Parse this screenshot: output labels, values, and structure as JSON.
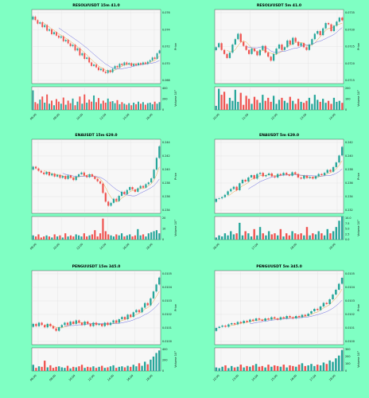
{
  "colors": {
    "background": "#7fffc3",
    "plot_bg": "#f7f7f7",
    "up": "#26a69a",
    "down": "#ef5350",
    "ma_fast": "#e8a33a",
    "ma_slow": "#6b6be0"
  },
  "chart_data": [
    {
      "type": "candlestick",
      "title": "RESOLVUSDT 15m 41.0",
      "ylabel": "Price",
      "vol_label": "Volume  10³",
      "price_ticks": [
        "0.076",
        "0.074",
        "0.072",
        "0.070",
        "0.068"
      ],
      "ylim": [
        0.0665,
        0.077
      ],
      "x_ticks": [
        "06:00",
        "08:00",
        "10:00",
        "12:00",
        "14:00",
        "16:00"
      ],
      "vol_ticks": [
        "400",
        "200",
        "0"
      ],
      "vol_max": 450,
      "closes": [
        0.076,
        0.0755,
        0.075,
        0.0752,
        0.0745,
        0.0748,
        0.074,
        0.0742,
        0.0735,
        0.0738,
        0.0733,
        0.073,
        0.0732,
        0.0725,
        0.0727,
        0.0722,
        0.0718,
        0.072,
        0.0712,
        0.0715,
        0.0705,
        0.0708,
        0.07,
        0.0702,
        0.0695,
        0.069,
        0.0692,
        0.0688,
        0.0684,
        0.0686,
        0.0682,
        0.068,
        0.0684,
        0.0681,
        0.0686,
        0.069,
        0.0688,
        0.0693,
        0.0691,
        0.0695,
        0.0692,
        0.0694,
        0.069,
        0.0693,
        0.0691,
        0.0694,
        0.0692,
        0.0695,
        0.0693,
        0.0696,
        0.0698,
        0.0702,
        0.07,
        0.0708,
        0.0712
      ],
      "volumes": [
        380,
        150,
        120,
        200,
        260,
        140,
        300,
        120,
        180,
        90,
        210,
        160,
        120,
        240,
        100,
        180,
        130,
        220,
        90,
        160,
        260,
        120,
        300,
        140,
        200,
        160,
        280,
        150,
        230,
        120,
        180,
        140,
        220,
        160,
        170,
        130,
        190,
        110,
        150,
        120,
        100,
        130,
        90,
        140,
        110,
        160,
        120,
        150,
        100,
        130,
        140,
        110,
        160,
        120,
        150
      ]
    },
    {
      "type": "candlestick",
      "title": "RESOLVUSDT 5m 41.0",
      "ylabel": "Price",
      "vol_label": "Volume  10³",
      "price_ticks": [
        "0.0735",
        "0.0730",
        "0.0725",
        "0.0720",
        "0.0715"
      ],
      "ylim": [
        0.07115,
        0.0739
      ],
      "x_ticks": [
        "10:00",
        "11:00",
        "12:00",
        "13:00",
        "14:00"
      ],
      "vol_ticks": [
        "200",
        "100",
        "0"
      ],
      "vol_max": 230,
      "closes": [
        0.0725,
        0.07265,
        0.0724,
        0.07225,
        0.0721,
        0.0723,
        0.0726,
        0.0728,
        0.073,
        0.0727,
        0.07255,
        0.0724,
        0.07225,
        0.07245,
        0.07235,
        0.0722,
        0.0724,
        0.07255,
        0.0723,
        0.07215,
        0.072,
        0.07225,
        0.07245,
        0.0726,
        0.0724,
        0.0725,
        0.07275,
        0.0726,
        0.07285,
        0.0727,
        0.07255,
        0.07265,
        0.0725,
        0.0724,
        0.0726,
        0.0728,
        0.073,
        0.0731,
        0.07295,
        0.0732,
        0.0734,
        0.07335,
        0.0731,
        0.0733,
        0.07345,
        0.0736,
        0.0735
      ],
      "volumes": [
        40,
        210,
        150,
        180,
        60,
        120,
        90,
        200,
        80,
        170,
        50,
        140,
        110,
        60,
        130,
        100,
        70,
        150,
        90,
        120,
        80,
        140,
        60,
        100,
        120,
        90,
        70,
        130,
        90,
        60,
        110,
        80,
        70,
        90,
        120,
        60,
        150,
        100,
        80,
        110,
        70,
        90,
        60,
        120,
        80,
        90,
        70
      ]
    },
    {
      "type": "candlestick",
      "title": "ENAUSDT 15m 629.0",
      "ylabel": "Price",
      "vol_label": "Volume  10³",
      "price_ticks": [
        "0.244",
        "0.242",
        "0.240",
        "0.238",
        "0.236",
        "0.234"
      ],
      "ylim": [
        0.2325,
        0.2452
      ],
      "x_ticks": [
        "08:00",
        "10:00",
        "12:00",
        "14:00",
        "16:00",
        "18:00"
      ],
      "vol_ticks": [
        "20",
        "10",
        "0"
      ],
      "vol_max": 22,
      "closes": [
        0.2405,
        0.2402,
        0.2398,
        0.2395,
        0.2392,
        0.2396,
        0.239,
        0.2393,
        0.2388,
        0.2391,
        0.2386,
        0.2389,
        0.2384,
        0.239,
        0.2386,
        0.2382,
        0.2388,
        0.2392,
        0.2395,
        0.239,
        0.2387,
        0.2392,
        0.2388,
        0.2384,
        0.238,
        0.2376,
        0.236,
        0.2345,
        0.2338,
        0.2343,
        0.235,
        0.2346,
        0.2355,
        0.2362,
        0.2358,
        0.2365,
        0.237,
        0.2366,
        0.2362,
        0.2368,
        0.2372,
        0.2369,
        0.2375,
        0.2378,
        0.2385,
        0.24,
        0.242,
        0.244
      ],
      "volumes": [
        4,
        3,
        5,
        2,
        3,
        4,
        3,
        2,
        5,
        3,
        4,
        2,
        6,
        3,
        4,
        3,
        5,
        4,
        3,
        6,
        3,
        4,
        5,
        9,
        3,
        6,
        20,
        8,
        5,
        4,
        3,
        5,
        4,
        6,
        3,
        4,
        5,
        3,
        4,
        10,
        4,
        5,
        3,
        6,
        7,
        8,
        9,
        6
      ]
    },
    {
      "type": "candlestick",
      "title": "ENAUSDT 5m 629.0",
      "ylabel": "Price",
      "vol_label": "Volume  10³",
      "price_ticks": [
        "0.242",
        "0.240",
        "0.238",
        "0.236",
        "0.234",
        "0.232"
      ],
      "ylim": [
        0.231,
        0.2438
      ],
      "x_ticks": [
        "16:00",
        "17:00",
        "18:00",
        "19:00"
      ],
      "vol_ticks": [
        "10.0",
        "7.5",
        "5.0",
        "2.5",
        "0.0"
      ],
      "vol_max": 11,
      "closes": [
        0.2335,
        0.2336,
        0.2338,
        0.2342,
        0.2348,
        0.2352,
        0.2356,
        0.235,
        0.2362,
        0.2368,
        0.2365,
        0.2372,
        0.2376,
        0.237,
        0.2378,
        0.238,
        0.2374,
        0.2376,
        0.2379,
        0.2374,
        0.2372,
        0.2378,
        0.2376,
        0.238,
        0.2377,
        0.2375,
        0.2381,
        0.2378,
        0.2372,
        0.237,
        0.2375,
        0.2371,
        0.2373,
        0.237,
        0.2374,
        0.2378,
        0.2376,
        0.238,
        0.2385,
        0.2382,
        0.239,
        0.2398,
        0.241,
        0.2425
      ],
      "volumes": [
        1,
        2,
        1.5,
        3,
        2,
        4,
        2.5,
        3,
        8,
        2,
        4,
        3,
        1.5,
        5,
        2,
        6,
        3,
        2,
        4,
        2.5,
        3,
        2,
        5,
        1.5,
        3,
        2,
        4,
        3,
        2.5,
        3,
        2,
        6,
        2,
        3,
        2.5,
        4,
        3,
        2,
        5,
        3,
        4,
        6,
        9,
        11
      ]
    },
    {
      "type": "candlestick",
      "title": "PENGUUSDT 15m 345.0",
      "ylabel": "Price",
      "vol_label": "Volume  10³",
      "price_ticks": [
        "0.0105",
        "0.0104",
        "0.0103",
        "0.0102",
        "0.0101",
        "0.0100"
      ],
      "ylim": [
        0.00994,
        0.01058
      ],
      "x_ticks": [
        "06:00",
        "08:00",
        "10:00",
        "12:00",
        "14:00",
        "16:00",
        "18:00"
      ],
      "vol_ticks": [
        "400",
        "200",
        "0"
      ],
      "vol_max": 450,
      "closes": [
        0.01012,
        0.0101,
        0.01013,
        0.01011,
        0.01009,
        0.01012,
        0.0101,
        0.01008,
        0.01006,
        0.01009,
        0.01011,
        0.01013,
        0.01011,
        0.01014,
        0.01012,
        0.01015,
        0.01013,
        0.01011,
        0.01014,
        0.01012,
        0.0101,
        0.01013,
        0.01011,
        0.01012,
        0.0101,
        0.01013,
        0.01011,
        0.01013,
        0.01015,
        0.01013,
        0.01016,
        0.01018,
        0.01016,
        0.0102,
        0.01018,
        0.01022,
        0.01024,
        0.01022,
        0.01026,
        0.0103,
        0.01028,
        0.01034,
        0.0104,
        0.01046,
        0.01052
      ],
      "volumes": [
        120,
        60,
        90,
        80,
        200,
        70,
        110,
        60,
        80,
        90,
        70,
        60,
        100,
        50,
        80,
        70,
        90,
        120,
        60,
        80,
        70,
        90,
        60,
        80,
        100,
        60,
        70,
        90,
        110,
        60,
        80,
        90,
        70,
        100,
        80,
        120,
        90,
        150,
        100,
        180,
        130,
        220,
        280,
        350,
        400
      ]
    },
    {
      "type": "candlestick",
      "title": "PENGUUSDT 5m 345.0",
      "ylabel": "Price",
      "vol_label": "Volume  10³",
      "price_ticks": [
        "0.0105",
        "0.0104",
        "0.0103",
        "0.0102",
        "0.0101",
        "0.0100"
      ],
      "ylim": [
        0.00996,
        0.01058
      ],
      "x_ticks": [
        "12:00",
        "13:00",
        "14:00",
        "15:00",
        "16:00",
        "17:00",
        "18:00"
      ],
      "vol_ticks": [
        "300",
        "200",
        "100",
        "0"
      ],
      "vol_max": 330,
      "closes": [
        0.0101,
        0.01011,
        0.01012,
        0.01011,
        0.01013,
        0.01014,
        0.01013,
        0.01015,
        0.01014,
        0.01016,
        0.01015,
        0.01017,
        0.01016,
        0.01018,
        0.01017,
        0.01016,
        0.01018,
        0.01017,
        0.01019,
        0.01018,
        0.01017,
        0.01019,
        0.01018,
        0.0102,
        0.01019,
        0.01018,
        0.0102,
        0.01019,
        0.01021,
        0.0102,
        0.01022,
        0.01024,
        0.01026,
        0.01025,
        0.01028,
        0.01031,
        0.0103,
        0.01034,
        0.01038,
        0.01042,
        0.01047,
        0.01052
      ],
      "volumes": [
        50,
        40,
        60,
        80,
        40,
        70,
        50,
        60,
        90,
        50,
        70,
        60,
        80,
        100,
        60,
        70,
        50,
        90,
        60,
        80,
        70,
        60,
        90,
        50,
        80,
        70,
        60,
        90,
        110,
        70,
        80,
        100,
        70,
        90,
        80,
        120,
        100,
        150,
        130,
        180,
        220,
        300
      ]
    }
  ]
}
